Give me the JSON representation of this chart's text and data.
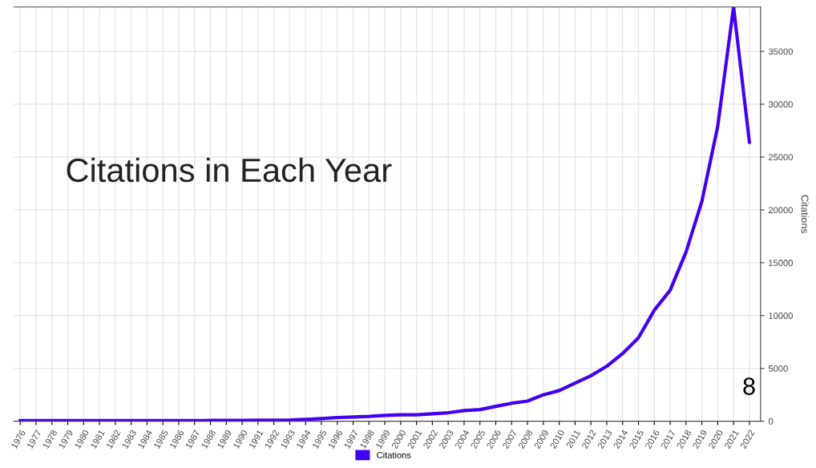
{
  "chart_data": {
    "type": "line",
    "title": "Citations in Each Year",
    "ylabel": "Citations",
    "categories": [
      "1976",
      "1977",
      "1978",
      "1979",
      "1980",
      "1981",
      "1982",
      "1983",
      "1984",
      "1985",
      "1986",
      "1987",
      "1988",
      "1989",
      "1990",
      "1991",
      "1992",
      "1993",
      "1994",
      "1995",
      "1996",
      "1997",
      "1998",
      "1999",
      "2000",
      "2001",
      "2002",
      "2003",
      "2004",
      "2005",
      "2006",
      "2007",
      "2008",
      "2009",
      "2010",
      "2011",
      "2012",
      "2013",
      "2014",
      "2015",
      "2016",
      "2017",
      "2018",
      "2019",
      "2020",
      "2021",
      "2022"
    ],
    "series": [
      {
        "name": "Citations",
        "color": "#4400f0",
        "values": [
          50,
          50,
          50,
          50,
          50,
          50,
          50,
          50,
          50,
          60,
          60,
          60,
          70,
          70,
          80,
          90,
          100,
          120,
          180,
          250,
          350,
          400,
          450,
          550,
          600,
          600,
          700,
          800,
          1000,
          1100,
          1400,
          1700,
          1900,
          2500,
          2900,
          3600,
          4300,
          5200,
          6400,
          7900,
          10500,
          12400,
          16000,
          20800,
          27900,
          39200,
          26400
        ]
      }
    ],
    "ylim": [
      0,
      39200
    ],
    "yticks": [
      0,
      5000,
      10000,
      15000,
      20000,
      25000,
      30000,
      35000
    ],
    "grid": true,
    "legend": "bottom",
    "marker": "none",
    "line_style": "solid",
    "annotations": [
      "8"
    ]
  }
}
